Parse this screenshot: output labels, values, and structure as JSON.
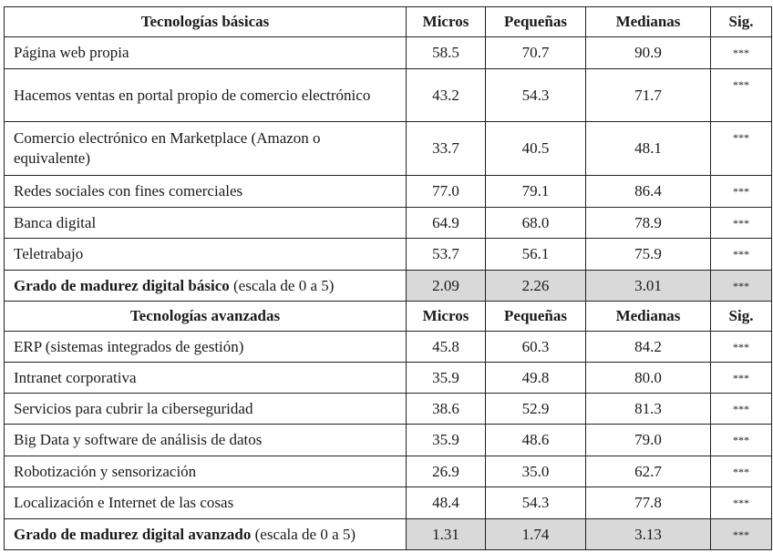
{
  "sections": [
    {
      "header": {
        "label": "Tecnologías básicas",
        "cols": [
          "Micros",
          "Pequeñas",
          "Medianas",
          "Sig."
        ]
      },
      "rows": [
        {
          "label": "Página web propia",
          "values": [
            "58.5",
            "70.7",
            "90.9"
          ],
          "sig": "***"
        },
        {
          "label": "Hacemos ventas en portal propio de comercio electrónico",
          "values": [
            "43.2",
            "54.3",
            "71.7"
          ],
          "sig": "***"
        },
        {
          "label": "Comercio electrónico en Marketplace (Amazon o equivalente)",
          "values": [
            "33.7",
            "40.5",
            "48.1"
          ],
          "sig": "***"
        },
        {
          "label": "Redes sociales con fines comerciales",
          "values": [
            "77.0",
            "79.1",
            "86.4"
          ],
          "sig": "***"
        },
        {
          "label": "Banca digital",
          "values": [
            "64.9",
            "68.0",
            "78.9"
          ],
          "sig": "***"
        },
        {
          "label": "Teletrabajo",
          "values": [
            "53.7",
            "56.1",
            "75.9"
          ],
          "sig": "***"
        }
      ],
      "summary": {
        "label_bold": "Grado de madurez digital básico",
        "label_rest": " (escala de 0 a 5)",
        "values": [
          "2.09",
          "2.26",
          "3.01"
        ],
        "sig": "***"
      }
    },
    {
      "header": {
        "label": "Tecnologías avanzadas",
        "cols": [
          "Micros",
          "Pequeñas",
          "Medianas",
          "Sig."
        ]
      },
      "rows": [
        {
          "label": "ERP (sistemas integrados de gestión)",
          "values": [
            "45.8",
            "60.3",
            "84.2"
          ],
          "sig": "***"
        },
        {
          "label": "Intranet corporativa",
          "values": [
            "35.9",
            "49.8",
            "80.0"
          ],
          "sig": "***"
        },
        {
          "label": "Servicios para cubrir la ciberseguridad",
          "values": [
            "38.6",
            "52.9",
            "81.3"
          ],
          "sig": "***"
        },
        {
          "label": "Big Data y software de análisis de datos",
          "values": [
            "35.9",
            "48.6",
            "79.0"
          ],
          "sig": "***"
        },
        {
          "label": "Robotización y sensorización",
          "values": [
            "26.9",
            "35.0",
            "62.7"
          ],
          "sig": "***"
        },
        {
          "label": "Localización e Internet de las cosas",
          "values": [
            "48.4",
            "54.3",
            "77.8"
          ],
          "sig": "***"
        }
      ],
      "summary": {
        "label_bold": "Grado de madurez digital avanzado",
        "label_rest": " (escala de 0 a 5)",
        "values": [
          "1.31",
          "1.74",
          "3.13"
        ],
        "sig": "***"
      }
    }
  ],
  "colors": {
    "summary_fill": "#d9d9d9",
    "border": "#222222"
  }
}
